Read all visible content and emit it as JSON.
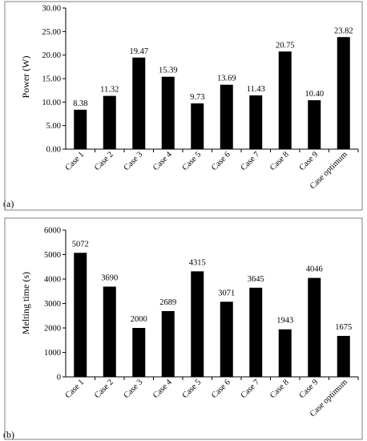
{
  "chart_data": [
    {
      "type": "bar",
      "panel_label": "(a)",
      "title": "",
      "xlabel": "",
      "ylabel": "Power (W)",
      "categories": [
        "Case 1",
        "Case 2",
        "Case 3",
        "Case 4",
        "Case 5",
        "Case 6",
        "Case 7",
        "Case 8",
        "Case 9",
        "Case optimum"
      ],
      "values": [
        8.38,
        11.32,
        19.47,
        15.39,
        9.73,
        13.69,
        11.43,
        20.75,
        10.4,
        23.82
      ],
      "value_labels": [
        "8.38",
        "11.32",
        "19.47",
        "15.39",
        "9.73",
        "13.69",
        "11.43",
        "20.75",
        "10.40",
        "23.82"
      ],
      "ylim": [
        0,
        30
      ],
      "yticks": [
        0,
        5,
        10,
        15,
        20,
        25,
        30
      ],
      "ytick_labels": [
        "0.00",
        "5.00",
        "10.00",
        "15.00",
        "20.00",
        "25.00",
        "30.00"
      ],
      "bar_color": "#000000",
      "grid": false,
      "legend": "none"
    },
    {
      "type": "bar",
      "panel_label": "(b)",
      "title": "",
      "xlabel": "",
      "ylabel": "Melting time (s)",
      "categories": [
        "Case 1",
        "Case 2",
        "Case 3",
        "Case 4",
        "Case 5",
        "Case 6",
        "Case 7",
        "Case 8",
        "Case 9",
        "Case optimum"
      ],
      "values": [
        5072,
        3690,
        2000,
        2689,
        4315,
        3071,
        3645,
        1943,
        4046,
        1675
      ],
      "value_labels": [
        "5072",
        "3690",
        "2000",
        "2689",
        "4315",
        "3071",
        "3645",
        "1943",
        "4046",
        "1675"
      ],
      "ylim": [
        0,
        6000
      ],
      "yticks": [
        0,
        1000,
        2000,
        3000,
        4000,
        5000,
        6000
      ],
      "ytick_labels": [
        "0",
        "1000",
        "2000",
        "3000",
        "4000",
        "5000",
        "6000"
      ],
      "bar_color": "#000000",
      "grid": false,
      "legend": "none"
    }
  ]
}
